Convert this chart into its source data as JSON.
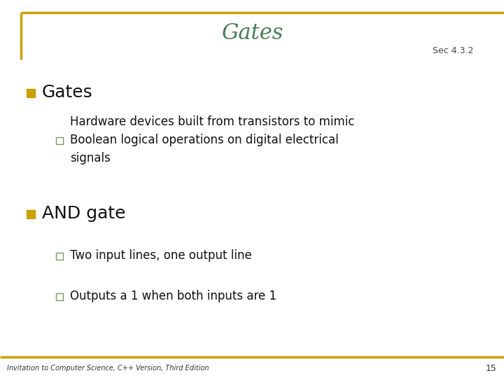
{
  "title": "Gates",
  "title_color": "#4a7c59",
  "sec_label": "Sec 4.3.2",
  "sec_color": "#444444",
  "background_color": "#ffffff",
  "border_color": "#c8a000",
  "bullet1_text": "Gates",
  "text_color": "#111111",
  "bullet_marker_color": "#c8a000",
  "sub_marker_color": "#7a9a60",
  "sub1_text": "Hardware devices built from transistors to mimic\nBoolean logical operations on digital electrical\nsignals",
  "bullet2_text": "AND gate",
  "sub2_text": "Two input lines, one output line",
  "sub3_text": "Outputs a 1 when both inputs are 1",
  "footer_text": "Invitation to Computer Science, C++ Version, Third Edition",
  "footer_page": "15",
  "footer_color": "#333333"
}
